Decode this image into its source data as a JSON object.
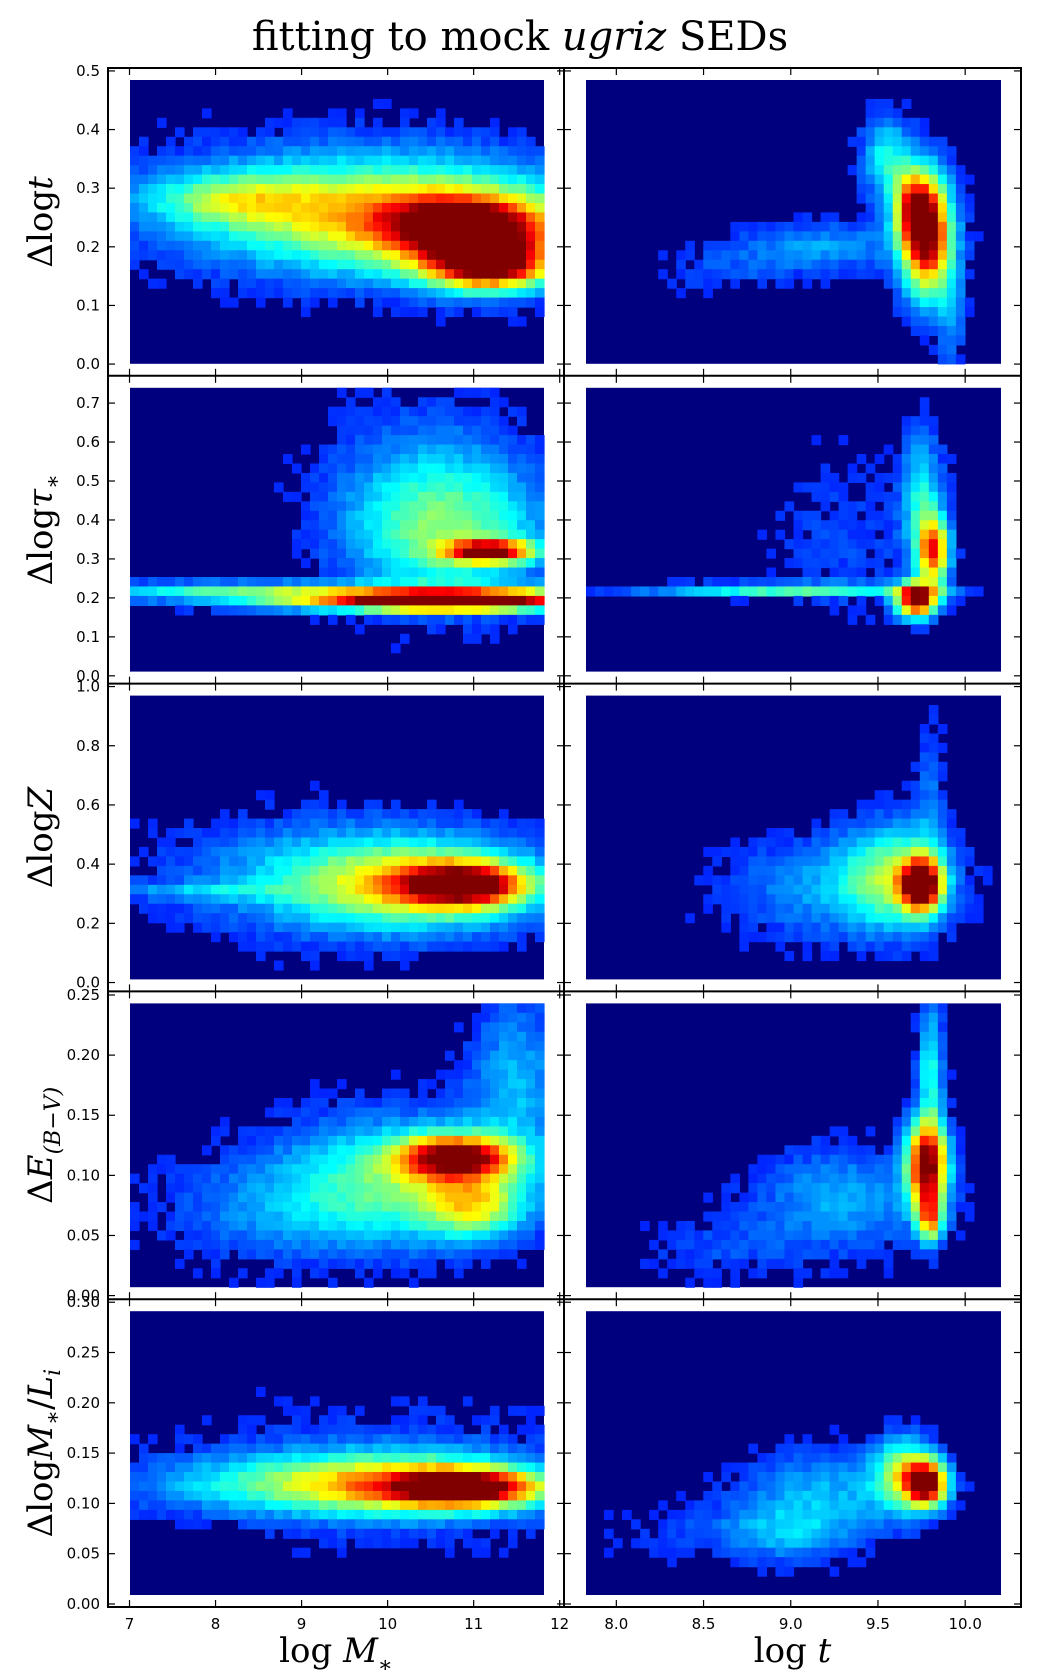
{
  "figure": {
    "title_prefix": "fitting to mock ",
    "title_italic": "ugriz",
    "title_suffix": " SEDs",
    "colormap": [
      "#000080",
      "#0000ff",
      "#00bfff",
      "#7fffaa",
      "#ffff00",
      "#ff8c00",
      "#ff3300",
      "#800000"
    ],
    "background": "#00007f"
  },
  "chart_data": [
    {
      "type": "heatmap",
      "row": 0,
      "column": 0,
      "ylabel": "Δlogt",
      "xlabel": "",
      "xlim": [
        6.75,
        12.05
      ],
      "ylim": [
        -0.02,
        0.505
      ],
      "xticks": [
        7,
        8,
        9,
        10,
        11,
        12
      ],
      "yticks": [
        0.0,
        0.1,
        0.2,
        0.3,
        0.4,
        0.5
      ],
      "density": [
        {
          "x": 9.5,
          "y": 0.27,
          "sx": 1.6,
          "sy": 0.075,
          "w": 0.3
        },
        {
          "x": 10.5,
          "y": 0.24,
          "sx": 1.3,
          "sy": 0.06,
          "w": 0.45
        },
        {
          "x": 11.1,
          "y": 0.2,
          "sx": 0.55,
          "sy": 0.045,
          "w": 0.6
        },
        {
          "x": 11.2,
          "y": 0.165,
          "sx": 0.45,
          "sy": 0.025,
          "w": 0.6
        },
        {
          "x": 10.8,
          "y": 0.24,
          "sx": 0.6,
          "sy": 0.03,
          "w": 0.45
        },
        {
          "x": 8.2,
          "y": 0.28,
          "sx": 0.7,
          "sy": 0.03,
          "w": 0.3
        }
      ]
    },
    {
      "type": "heatmap",
      "row": 0,
      "column": 1,
      "ylabel": "",
      "xlabel": "",
      "xlim": [
        7.7,
        10.32
      ],
      "ylim": [
        -0.02,
        0.505
      ],
      "xticks": [
        8.0,
        8.5,
        9.0,
        9.5,
        10.0
      ],
      "yticks": [
        0.0,
        0.1,
        0.2,
        0.3,
        0.4,
        0.5
      ],
      "density": [
        {
          "x": 9.78,
          "y": 0.22,
          "sx": 0.1,
          "sy": 0.07,
          "w": 1.0
        },
        {
          "x": 9.7,
          "y": 0.27,
          "sx": 0.08,
          "sy": 0.04,
          "w": 0.5
        },
        {
          "x": 9.55,
          "y": 0.35,
          "sx": 0.1,
          "sy": 0.05,
          "w": 0.3
        },
        {
          "x": 9.2,
          "y": 0.2,
          "sx": 0.35,
          "sy": 0.03,
          "w": 0.18
        },
        {
          "x": 8.6,
          "y": 0.16,
          "sx": 0.3,
          "sy": 0.03,
          "w": 0.08
        },
        {
          "x": 9.92,
          "y": 0.08,
          "sx": 0.06,
          "sy": 0.06,
          "w": 0.15
        }
      ]
    },
    {
      "type": "heatmap",
      "row": 1,
      "column": 0,
      "ylabel": "Δlogτ*",
      "xlabel": "",
      "xlim": [
        6.75,
        12.05
      ],
      "ylim": [
        -0.02,
        0.77
      ],
      "xticks": [
        7,
        8,
        9,
        10,
        11,
        12
      ],
      "yticks": [
        0.0,
        0.1,
        0.2,
        0.3,
        0.4,
        0.5,
        0.6,
        0.7
      ],
      "density": [
        {
          "x": 10.5,
          "y": 0.2,
          "sx": 1.6,
          "sy": 0.02,
          "w": 0.7
        },
        {
          "x": 10.7,
          "y": 0.19,
          "sx": 0.8,
          "sy": 0.015,
          "w": 0.8
        },
        {
          "x": 8.0,
          "y": 0.22,
          "sx": 1.2,
          "sy": 0.015,
          "w": 0.25
        },
        {
          "x": 11.2,
          "y": 0.32,
          "sx": 0.35,
          "sy": 0.02,
          "w": 0.85
        },
        {
          "x": 10.7,
          "y": 0.36,
          "sx": 0.8,
          "sy": 0.12,
          "w": 0.35
        },
        {
          "x": 10.5,
          "y": 0.5,
          "sx": 0.8,
          "sy": 0.15,
          "w": 0.15
        }
      ]
    },
    {
      "type": "heatmap",
      "row": 1,
      "column": 1,
      "ylabel": "",
      "xlabel": "",
      "xlim": [
        7.7,
        10.32
      ],
      "ylim": [
        -0.02,
        0.77
      ],
      "xticks": [
        8.0,
        8.5,
        9.0,
        9.5,
        10.0
      ],
      "yticks": [
        0.0,
        0.1,
        0.2,
        0.3,
        0.4,
        0.5,
        0.6,
        0.7
      ],
      "density": [
        {
          "x": 9.72,
          "y": 0.195,
          "sx": 0.08,
          "sy": 0.03,
          "w": 1.0
        },
        {
          "x": 9.82,
          "y": 0.32,
          "sx": 0.06,
          "sy": 0.06,
          "w": 0.75
        },
        {
          "x": 9.0,
          "y": 0.22,
          "sx": 0.6,
          "sy": 0.012,
          "w": 0.35
        },
        {
          "x": 9.75,
          "y": 0.45,
          "sx": 0.08,
          "sy": 0.12,
          "w": 0.3
        },
        {
          "x": 9.3,
          "y": 0.35,
          "sx": 0.3,
          "sy": 0.15,
          "w": 0.08
        }
      ]
    },
    {
      "type": "heatmap",
      "row": 2,
      "column": 0,
      "ylabel": "ΔlogZ",
      "xlabel": "",
      "xlim": [
        6.75,
        12.05
      ],
      "ylim": [
        -0.03,
        1.01
      ],
      "xticks": [
        7,
        8,
        9,
        10,
        11,
        12
      ],
      "yticks": [
        0.0,
        0.2,
        0.4,
        0.6,
        0.8,
        1.0
      ],
      "density": [
        {
          "x": 10.9,
          "y": 0.33,
          "sx": 0.5,
          "sy": 0.05,
          "w": 0.85
        },
        {
          "x": 10.3,
          "y": 0.33,
          "sx": 1.0,
          "sy": 0.1,
          "w": 0.45
        },
        {
          "x": 9.5,
          "y": 0.36,
          "sx": 1.4,
          "sy": 0.14,
          "w": 0.2
        },
        {
          "x": 7.8,
          "y": 0.31,
          "sx": 0.8,
          "sy": 0.02,
          "w": 0.15
        }
      ]
    },
    {
      "type": "heatmap",
      "row": 2,
      "column": 1,
      "ylabel": "",
      "xlabel": "",
      "xlim": [
        7.7,
        10.32
      ],
      "ylim": [
        -0.03,
        1.01
      ],
      "xticks": [
        8.0,
        8.5,
        9.0,
        9.5,
        10.0
      ],
      "yticks": [
        0.0,
        0.2,
        0.4,
        0.6,
        0.8,
        1.0
      ],
      "density": [
        {
          "x": 9.75,
          "y": 0.33,
          "sx": 0.08,
          "sy": 0.06,
          "w": 1.0
        },
        {
          "x": 9.6,
          "y": 0.36,
          "sx": 0.2,
          "sy": 0.12,
          "w": 0.4
        },
        {
          "x": 9.2,
          "y": 0.32,
          "sx": 0.4,
          "sy": 0.12,
          "w": 0.18
        },
        {
          "x": 9.8,
          "y": 0.6,
          "sx": 0.06,
          "sy": 0.2,
          "w": 0.12
        }
      ]
    },
    {
      "type": "heatmap",
      "row": 3,
      "column": 0,
      "ylabel": "ΔE(B−V)",
      "xlabel": "",
      "xlim": [
        6.75,
        12.05
      ],
      "ylim": [
        -0.003,
        0.253
      ],
      "xticks": [
        7,
        8,
        9,
        10,
        11,
        12
      ],
      "yticks": [
        0.0,
        0.05,
        0.1,
        0.15,
        0.2,
        0.25
      ],
      "density": [
        {
          "x": 10.8,
          "y": 0.115,
          "sx": 0.45,
          "sy": 0.012,
          "w": 0.9
        },
        {
          "x": 11.0,
          "y": 0.075,
          "sx": 0.4,
          "sy": 0.018,
          "w": 0.4
        },
        {
          "x": 10.2,
          "y": 0.1,
          "sx": 1.0,
          "sy": 0.035,
          "w": 0.35
        },
        {
          "x": 11.5,
          "y": 0.18,
          "sx": 0.4,
          "sy": 0.05,
          "w": 0.2
        },
        {
          "x": 9.0,
          "y": 0.07,
          "sx": 1.2,
          "sy": 0.03,
          "w": 0.15
        }
      ]
    },
    {
      "type": "heatmap",
      "row": 3,
      "column": 1,
      "ylabel": "",
      "xlabel": "",
      "xlim": [
        7.7,
        10.32
      ],
      "ylim": [
        -0.003,
        0.253
      ],
      "xticks": [
        8.0,
        8.5,
        9.0,
        9.5,
        10.0
      ],
      "yticks": [
        0.0,
        0.05,
        0.1,
        0.15,
        0.2,
        0.25
      ],
      "density": [
        {
          "x": 9.78,
          "y": 0.11,
          "sx": 0.08,
          "sy": 0.025,
          "w": 1.0
        },
        {
          "x": 9.8,
          "y": 0.065,
          "sx": 0.05,
          "sy": 0.015,
          "w": 0.6
        },
        {
          "x": 9.3,
          "y": 0.08,
          "sx": 0.35,
          "sy": 0.03,
          "w": 0.2
        },
        {
          "x": 9.8,
          "y": 0.19,
          "sx": 0.05,
          "sy": 0.04,
          "w": 0.3
        },
        {
          "x": 8.6,
          "y": 0.04,
          "sx": 0.35,
          "sy": 0.02,
          "w": 0.08
        }
      ]
    },
    {
      "type": "heatmap",
      "row": 4,
      "column": 0,
      "ylabel": "ΔlogM*/Li",
      "xlabel": "log M*",
      "xlim": [
        6.75,
        12.05
      ],
      "ylim": [
        -0.003,
        0.303
      ],
      "xticks": [
        7,
        8,
        9,
        10,
        11,
        12
      ],
      "yticks": [
        0.0,
        0.05,
        0.1,
        0.15,
        0.2,
        0.25,
        0.3
      ],
      "density": [
        {
          "x": 10.9,
          "y": 0.115,
          "sx": 0.55,
          "sy": 0.012,
          "w": 0.85
        },
        {
          "x": 10.3,
          "y": 0.118,
          "sx": 1.1,
          "sy": 0.02,
          "w": 0.45
        },
        {
          "x": 9.0,
          "y": 0.12,
          "sx": 1.4,
          "sy": 0.02,
          "w": 0.25
        },
        {
          "x": 10.0,
          "y": 0.13,
          "sx": 1.6,
          "sy": 0.05,
          "w": 0.1
        }
      ]
    },
    {
      "type": "heatmap",
      "row": 4,
      "column": 1,
      "ylabel": "",
      "xlabel": "log t",
      "xlim": [
        7.7,
        10.32
      ],
      "ylim": [
        -0.003,
        0.303
      ],
      "xticks": [
        8.0,
        8.5,
        9.0,
        9.5,
        10.0
      ],
      "yticks": [
        0.0,
        0.05,
        0.1,
        0.15,
        0.2,
        0.25,
        0.3
      ],
      "density": [
        {
          "x": 9.78,
          "y": 0.12,
          "sx": 0.08,
          "sy": 0.015,
          "w": 1.0
        },
        {
          "x": 9.65,
          "y": 0.13,
          "sx": 0.12,
          "sy": 0.025,
          "w": 0.45
        },
        {
          "x": 9.2,
          "y": 0.11,
          "sx": 0.35,
          "sy": 0.03,
          "w": 0.2
        },
        {
          "x": 9.0,
          "y": 0.07,
          "sx": 0.25,
          "sy": 0.02,
          "w": 0.15
        },
        {
          "x": 8.5,
          "y": 0.07,
          "sx": 0.4,
          "sy": 0.02,
          "w": 0.07
        }
      ]
    }
  ]
}
